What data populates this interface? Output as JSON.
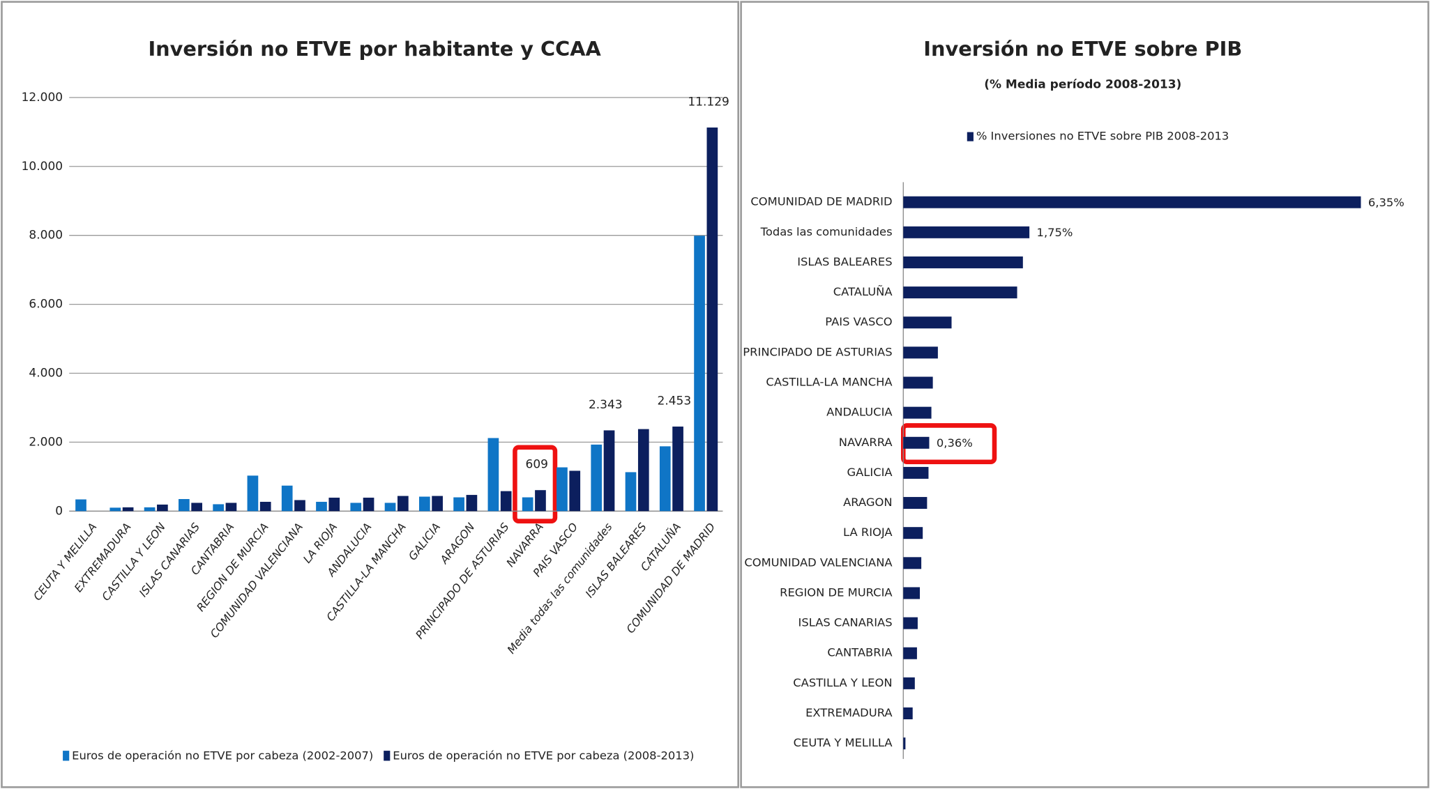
{
  "chart_data": [
    {
      "type": "bar",
      "title": "Inversión no ETVE por habitante y CCAA",
      "categories": [
        "CEUTA Y MELILLA",
        "EXTREMADURA",
        "CASTILLA Y LEON",
        "ISLAS CANARIAS",
        "CANTABRIA",
        "REGION DE MURCIA",
        "COMUNIDAD VALENCIANA",
        "LA RIOJA",
        "ANDALUCIA",
        "CASTILLA-LA MANCHA",
        "GALICIA",
        "ARAGON",
        "PRINCIPADO DE ASTURIAS",
        "NAVARRA",
        "PAIS VASCO",
        "Media todas las comunidades",
        "ISLAS BALEARES",
        "CATALUÑA",
        "COMUNIDAD DE MADRID"
      ],
      "series": [
        {
          "name": "Euros de operación no ETVE por cabeza (2002-2007)",
          "color": "#0f75c6",
          "values": [
            340,
            100,
            110,
            350,
            200,
            1030,
            740,
            270,
            240,
            240,
            420,
            400,
            2120,
            400,
            1270,
            1930,
            1130,
            1880,
            7990
          ]
        },
        {
          "name": "Euros de operación no ETVE por cabeza (2008-2013)",
          "color": "#0c1f5e",
          "values": [
            0,
            110,
            190,
            240,
            240,
            270,
            320,
            390,
            390,
            440,
            440,
            470,
            580,
            609,
            1170,
            2343,
            2380,
            2453,
            11129
          ],
          "value_labels": [
            null,
            null,
            null,
            null,
            null,
            null,
            null,
            null,
            null,
            null,
            null,
            null,
            null,
            "609",
            null,
            "2.343",
            null,
            "2.453",
            "11.129"
          ]
        }
      ],
      "ylim": [
        0,
        12000
      ],
      "yticks": [
        0,
        {
          "value": 2000,
          "label": "2.000"
        },
        {
          "value": 4000,
          "label": "4.000"
        },
        {
          "value": 6000,
          "label": "6.000"
        },
        {
          "value": 8000,
          "label": "8.000"
        },
        {
          "value": 10000,
          "label": "10.000"
        },
        {
          "value": 12000,
          "label": "12.000"
        }
      ],
      "grid": true,
      "legend": "bottom"
    },
    {
      "type": "barh",
      "title": "Inversión no ETVE sobre PIB",
      "subtitle": "(% Media período 2008-2013)",
      "categories": [
        "COMUNIDAD DE MADRID",
        "Todas las comunidades",
        "ISLAS BALEARES",
        "CATALUÑA",
        "PAIS VASCO",
        "PRINCIPADO DE ASTURIAS",
        "CASTILLA-LA MANCHA",
        "ANDALUCIA",
        "NAVARRA",
        "GALICIA",
        "ARAGON",
        "LA RIOJA",
        "COMUNIDAD VALENCIANA",
        "REGION DE MURCIA",
        "ISLAS CANARIAS",
        "CANTABRIA",
        "CASTILLA Y LEON",
        "EXTREMADURA",
        "CEUTA Y MELILLA"
      ],
      "series": [
        {
          "name": "% Inversiones no ETVE sobre PIB 2008-2013",
          "color": "#0c1f5e",
          "values": [
            6.35,
            1.75,
            1.66,
            1.58,
            0.67,
            0.48,
            0.41,
            0.39,
            0.36,
            0.35,
            0.33,
            0.27,
            0.25,
            0.23,
            0.2,
            0.19,
            0.16,
            0.13,
            0.03
          ],
          "value_labels": [
            "6,35%",
            "1,75%",
            null,
            null,
            null,
            null,
            null,
            null,
            "0,36%",
            null,
            null,
            null,
            null,
            null,
            null,
            null,
            null,
            null,
            null
          ]
        }
      ],
      "legend": "top"
    }
  ]
}
